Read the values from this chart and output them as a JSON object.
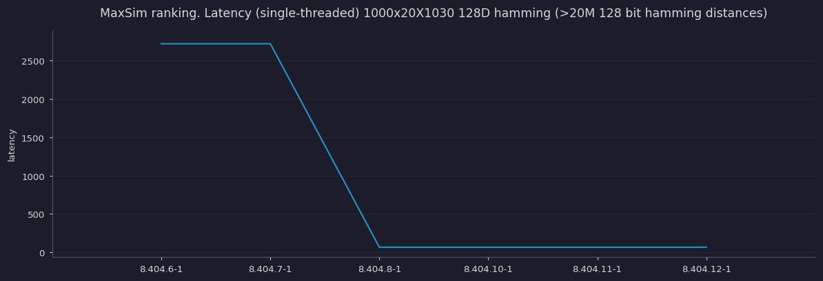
{
  "title": "MaxSim ranking. Latency (single-threaded) 1000x20X1030 128D hamming (>20M 128 bit hamming distances)",
  "ylabel": "latency",
  "background_color": "#1c1c2a",
  "text_color": "#d8d8d8",
  "line_color": "#2196c8",
  "x_labels": [
    "8.404.6-1",
    "8.404.7-1",
    "8.404.8-1",
    "8.404.10-1",
    "8.404.11-1",
    "8.404.12-1"
  ],
  "x_values": [
    1,
    2,
    3,
    4,
    5,
    6
  ],
  "y_values": [
    2720,
    2720,
    65,
    65,
    65,
    65
  ],
  "yticks": [
    0,
    500,
    1000,
    1500,
    2000,
    2500
  ],
  "ylim": [
    -60,
    2900
  ],
  "xlim": [
    0,
    7
  ],
  "title_fontsize": 12.5,
  "axis_fontsize": 9.5,
  "ylabel_fontsize": 9.5,
  "line_width": 1.5
}
